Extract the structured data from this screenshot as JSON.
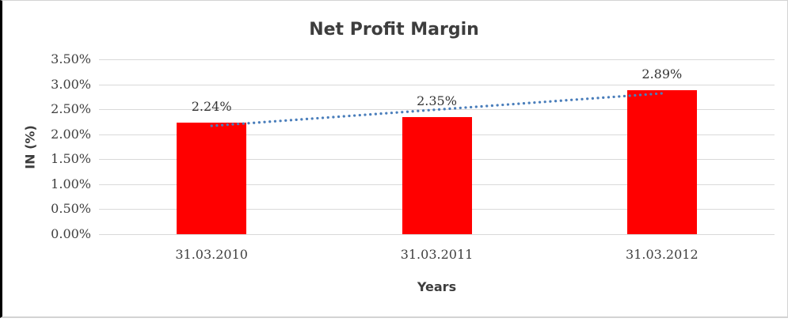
{
  "chart_data": {
    "type": "bar",
    "title": "Net Profit Margin",
    "xlabel": "Years",
    "ylabel": "IN (%)",
    "categories": [
      "31.03.2010",
      "31.03.2011",
      "31.03.2012"
    ],
    "values": [
      2.24,
      2.35,
      2.89
    ],
    "data_labels": [
      "2.24%",
      "2.35%",
      "2.89%"
    ],
    "y_ticks": [
      "3.50%",
      "3.00%",
      "2.50%",
      "2.00%",
      "1.50%",
      "1.00%",
      "0.50%",
      "0.00%"
    ],
    "ylim": [
      0,
      3.5
    ],
    "y_step": 0.5,
    "grid": true,
    "legend": "none",
    "bar_color": "#ff0000",
    "gridline_color": "#d9d9d9",
    "title_color": "#3d3d3d",
    "tick_color": "#404040",
    "trendline": {
      "type": "linear",
      "style": "dotted",
      "color": "#4a7ebb"
    }
  }
}
